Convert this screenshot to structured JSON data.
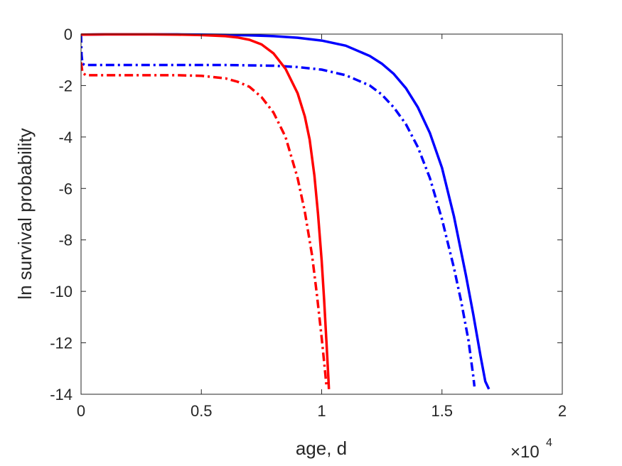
{
  "chart_data": {
    "type": "line",
    "title": "",
    "xlabel": "age, d",
    "ylabel": "ln survival probability",
    "x_exponent_label": {
      "base": "×10",
      "exponent": "4"
    },
    "xlim": [
      0,
      20000
    ],
    "ylim": [
      -14,
      0
    ],
    "xticks": [
      0,
      5000,
      10000,
      15000,
      20000
    ],
    "xtick_labels": [
      "0",
      "0.5",
      "1",
      "1.5",
      "2"
    ],
    "yticks": [
      0,
      -2,
      -4,
      -6,
      -8,
      -10,
      -12,
      -14
    ],
    "ytick_labels": [
      "0",
      "-2",
      "-4",
      "-6",
      "-8",
      "-10",
      "-12",
      "-14"
    ],
    "grid": false,
    "legend": null,
    "series": [
      {
        "color": "#0000ff",
        "style": "solid",
        "points": [
          [
            0,
            -0.02
          ],
          [
            1000,
            -0.01
          ],
          [
            2000,
            -0.01
          ],
          [
            3000,
            -0.01
          ],
          [
            4000,
            -0.01
          ],
          [
            5000,
            -0.02
          ],
          [
            6000,
            -0.03
          ],
          [
            7000,
            -0.05
          ],
          [
            8000,
            -0.08
          ],
          [
            9000,
            -0.14
          ],
          [
            10000,
            -0.25
          ],
          [
            11000,
            -0.45
          ],
          [
            12000,
            -0.85
          ],
          [
            12500,
            -1.15
          ],
          [
            13000,
            -1.55
          ],
          [
            13500,
            -2.1
          ],
          [
            14000,
            -2.85
          ],
          [
            14500,
            -3.85
          ],
          [
            15000,
            -5.2
          ],
          [
            15500,
            -7.1
          ],
          [
            16000,
            -9.4
          ],
          [
            16300,
            -10.9
          ],
          [
            16600,
            -12.5
          ],
          [
            16800,
            -13.5
          ],
          [
            16950,
            -13.8
          ]
        ]
      },
      {
        "color": "#0000ff",
        "style": "dashdot",
        "points": [
          [
            0,
            0
          ],
          [
            20,
            -0.8
          ],
          [
            60,
            -1.15
          ],
          [
            150,
            -1.2
          ],
          [
            2000,
            -1.2
          ],
          [
            4000,
            -1.2
          ],
          [
            6000,
            -1.2
          ],
          [
            8000,
            -1.23
          ],
          [
            9000,
            -1.28
          ],
          [
            10000,
            -1.38
          ],
          [
            11000,
            -1.6
          ],
          [
            12000,
            -2.0
          ],
          [
            12500,
            -2.35
          ],
          [
            13000,
            -2.85
          ],
          [
            13500,
            -3.5
          ],
          [
            14000,
            -4.4
          ],
          [
            14500,
            -5.6
          ],
          [
            15000,
            -7.2
          ],
          [
            15500,
            -9.1
          ],
          [
            15800,
            -10.4
          ],
          [
            16100,
            -11.9
          ],
          [
            16300,
            -13.3
          ],
          [
            16350,
            -13.7
          ]
        ]
      },
      {
        "color": "#ff0000",
        "style": "solid",
        "points": [
          [
            0,
            -0.02
          ],
          [
            1000,
            -0.01
          ],
          [
            2000,
            -0.01
          ],
          [
            3000,
            -0.01
          ],
          [
            4000,
            -0.02
          ],
          [
            5000,
            -0.04
          ],
          [
            6000,
            -0.08
          ],
          [
            6500,
            -0.13
          ],
          [
            7000,
            -0.22
          ],
          [
            7500,
            -0.4
          ],
          [
            8000,
            -0.75
          ],
          [
            8500,
            -1.35
          ],
          [
            9000,
            -2.3
          ],
          [
            9300,
            -3.2
          ],
          [
            9500,
            -4.1
          ],
          [
            9700,
            -5.5
          ],
          [
            9850,
            -7.0
          ],
          [
            10000,
            -8.8
          ],
          [
            10100,
            -10.3
          ],
          [
            10200,
            -12.0
          ],
          [
            10280,
            -13.4
          ],
          [
            10300,
            -13.8
          ]
        ]
      },
      {
        "color": "#ff0000",
        "style": "dashdot",
        "points": [
          [
            0,
            -1.1
          ],
          [
            60,
            -1.5
          ],
          [
            200,
            -1.6
          ],
          [
            1000,
            -1.6
          ],
          [
            2000,
            -1.6
          ],
          [
            3000,
            -1.6
          ],
          [
            4000,
            -1.6
          ],
          [
            5000,
            -1.62
          ],
          [
            6000,
            -1.72
          ],
          [
            6500,
            -1.85
          ],
          [
            7000,
            -2.05
          ],
          [
            7500,
            -2.45
          ],
          [
            8000,
            -3.05
          ],
          [
            8500,
            -4.0
          ],
          [
            9000,
            -5.6
          ],
          [
            9300,
            -6.9
          ],
          [
            9600,
            -8.6
          ],
          [
            9800,
            -10.1
          ],
          [
            10000,
            -11.8
          ],
          [
            10150,
            -13.2
          ],
          [
            10200,
            -13.7
          ]
        ]
      }
    ]
  }
}
